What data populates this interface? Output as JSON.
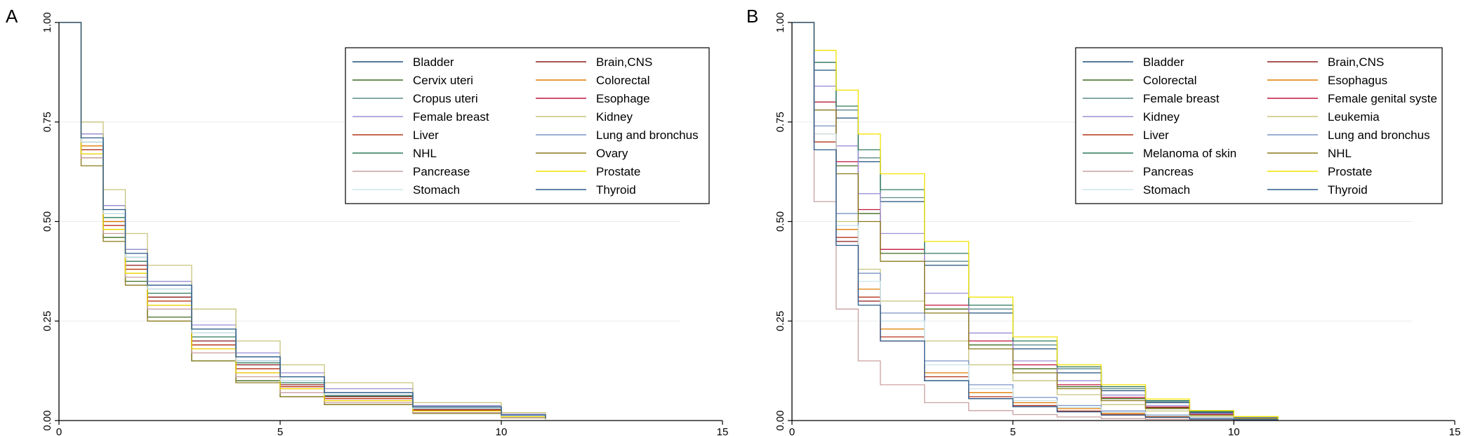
{
  "chart_data": [
    {
      "panel": "A",
      "type": "line",
      "xlim": [
        0,
        15
      ],
      "ylim": [
        0,
        1
      ],
      "xticks": [
        0,
        5,
        10,
        15
      ],
      "yticks": [
        0,
        0.25,
        0.5,
        0.75,
        1.0
      ],
      "xtick_labels": [
        "0",
        "5",
        "10",
        "15"
      ],
      "ytick_labels": [
        "0.00",
        "0.25",
        "0.50",
        "0.75",
        "1.00"
      ],
      "grid": true,
      "legend_position": "top-right",
      "series": [
        {
          "name": "Bladder",
          "color": "#1f4e79",
          "x": [
            0,
            0.5,
            1,
            1.5,
            2,
            3,
            4,
            5,
            6,
            8,
            10,
            11
          ],
          "y": [
            1.0,
            0.7,
            0.52,
            0.41,
            0.33,
            0.22,
            0.15,
            0.1,
            0.065,
            0.03,
            0.012,
            0.005
          ]
        },
        {
          "name": "Brain,CNS",
          "color": "#8b1a1a",
          "x": [
            0,
            0.5,
            1,
            1.5,
            2,
            3,
            4,
            5,
            6,
            8,
            10,
            11
          ],
          "y": [
            1.0,
            0.68,
            0.5,
            0.39,
            0.31,
            0.2,
            0.14,
            0.09,
            0.06,
            0.028,
            0.012,
            0.005
          ]
        },
        {
          "name": "Cervix uteri",
          "color": "#3f6b1f",
          "x": [
            0,
            0.5,
            1,
            1.5,
            2,
            3,
            4,
            5,
            6,
            8,
            10,
            11
          ],
          "y": [
            1.0,
            0.66,
            0.46,
            0.35,
            0.26,
            0.15,
            0.1,
            0.06,
            0.04,
            0.02,
            0.008,
            0.003
          ]
        },
        {
          "name": "Colorectal",
          "color": "#e07b00",
          "x": [
            0,
            0.5,
            1,
            1.5,
            2,
            3,
            4,
            5,
            6,
            8,
            10,
            11
          ],
          "y": [
            1.0,
            0.69,
            0.5,
            0.38,
            0.3,
            0.19,
            0.13,
            0.085,
            0.055,
            0.026,
            0.011,
            0.004
          ]
        },
        {
          "name": "Cropus uteri",
          "color": "#5b8a8a",
          "x": [
            0,
            0.5,
            1,
            1.5,
            2,
            3,
            4,
            5,
            6,
            8,
            10,
            11
          ],
          "y": [
            1.0,
            0.72,
            0.54,
            0.43,
            0.35,
            0.23,
            0.16,
            0.11,
            0.07,
            0.035,
            0.015,
            0.006
          ]
        },
        {
          "name": "Esophage",
          "color": "#c0143c",
          "x": [
            0,
            0.5,
            1,
            1.5,
            2,
            3,
            4,
            5,
            6,
            8,
            10,
            11
          ],
          "y": [
            1.0,
            0.67,
            0.48,
            0.37,
            0.29,
            0.18,
            0.12,
            0.08,
            0.05,
            0.024,
            0.01,
            0.004
          ]
        },
        {
          "name": "Female breast",
          "color": "#9c8fd6",
          "x": [
            0,
            0.5,
            1,
            1.5,
            2,
            3,
            4,
            5,
            6,
            8,
            10,
            11
          ],
          "y": [
            1.0,
            0.72,
            0.54,
            0.43,
            0.35,
            0.24,
            0.17,
            0.12,
            0.08,
            0.038,
            0.016,
            0.006
          ]
        },
        {
          "name": "Kidney",
          "color": "#c8c47a",
          "x": [
            0,
            0.5,
            1,
            1.5,
            2,
            3,
            4,
            5,
            6,
            8,
            10,
            11
          ],
          "y": [
            1.0,
            0.75,
            0.58,
            0.47,
            0.39,
            0.28,
            0.2,
            0.14,
            0.095,
            0.045,
            0.02,
            0.008
          ]
        },
        {
          "name": "Liver",
          "color": "#b5331a",
          "x": [
            0,
            0.5,
            1,
            1.5,
            2,
            3,
            4,
            5,
            6,
            8,
            10,
            11
          ],
          "y": [
            1.0,
            0.68,
            0.49,
            0.38,
            0.3,
            0.19,
            0.13,
            0.085,
            0.055,
            0.026,
            0.011,
            0.004
          ]
        },
        {
          "name": "Lung and bronchus",
          "color": "#7a94c4",
          "x": [
            0,
            0.5,
            1,
            1.5,
            2,
            3,
            4,
            5,
            6,
            8,
            10,
            11
          ],
          "y": [
            1.0,
            0.7,
            0.52,
            0.41,
            0.33,
            0.22,
            0.15,
            0.1,
            0.065,
            0.03,
            0.012,
            0.005
          ]
        },
        {
          "name": "NHL",
          "color": "#2d7a5a",
          "x": [
            0,
            0.5,
            1,
            1.5,
            2,
            3,
            4,
            5,
            6,
            8,
            10,
            11
          ],
          "y": [
            1.0,
            0.7,
            0.51,
            0.4,
            0.32,
            0.21,
            0.145,
            0.095,
            0.062,
            0.03,
            0.012,
            0.005
          ]
        },
        {
          "name": "Ovary",
          "color": "#8a7a1a",
          "x": [
            0,
            0.5,
            1,
            1.5,
            2,
            3,
            4,
            5,
            6,
            8,
            10,
            11
          ],
          "y": [
            1.0,
            0.64,
            0.45,
            0.34,
            0.25,
            0.15,
            0.095,
            0.06,
            0.04,
            0.018,
            0.007,
            0.003
          ]
        },
        {
          "name": "Pancrease",
          "color": "#c9a0a0",
          "x": [
            0,
            0.5,
            1,
            1.5,
            2,
            3,
            4,
            5,
            6,
            8,
            10,
            11
          ],
          "y": [
            1.0,
            0.66,
            0.47,
            0.36,
            0.28,
            0.17,
            0.11,
            0.07,
            0.045,
            0.02,
            0.008,
            0.003
          ]
        },
        {
          "name": "Prostate",
          "color": "#f2e200",
          "x": [
            0,
            0.5,
            1,
            1.5,
            2,
            3,
            4,
            5,
            6,
            8,
            10,
            11
          ],
          "y": [
            1.0,
            0.67,
            0.48,
            0.37,
            0.29,
            0.18,
            0.12,
            0.08,
            0.05,
            0.024,
            0.01,
            0.004
          ]
        },
        {
          "name": "Stomach",
          "color": "#cce6ea",
          "x": [
            0,
            0.5,
            1,
            1.5,
            2,
            3,
            4,
            5,
            6,
            8,
            10,
            11
          ],
          "y": [
            1.0,
            0.7,
            0.52,
            0.41,
            0.33,
            0.22,
            0.15,
            0.1,
            0.065,
            0.03,
            0.012,
            0.005
          ]
        },
        {
          "name": "Thyroid",
          "color": "#2a5a8c",
          "x": [
            0,
            0.5,
            1,
            1.5,
            2,
            3,
            4,
            5,
            6,
            8,
            10,
            11
          ],
          "y": [
            1.0,
            0.71,
            0.53,
            0.42,
            0.34,
            0.23,
            0.16,
            0.11,
            0.07,
            0.034,
            0.014,
            0.006
          ]
        }
      ]
    },
    {
      "panel": "B",
      "type": "line",
      "xlim": [
        0,
        15
      ],
      "ylim": [
        0,
        1
      ],
      "xticks": [
        0,
        5,
        10,
        15
      ],
      "yticks": [
        0,
        0.25,
        0.5,
        0.75,
        1.0
      ],
      "xtick_labels": [
        "0",
        "5",
        "10",
        "15"
      ],
      "ytick_labels": [
        "0.00",
        "0.25",
        "0.50",
        "0.75",
        "1.00"
      ],
      "grid": true,
      "legend_position": "top-right",
      "series": [
        {
          "name": "Bladder",
          "color": "#1f4e79",
          "x": [
            0,
            0.5,
            1,
            1.5,
            2,
            3,
            4,
            5,
            6,
            7,
            8,
            9,
            10,
            11
          ],
          "y": [
            1.0,
            0.88,
            0.76,
            0.65,
            0.55,
            0.39,
            0.27,
            0.18,
            0.12,
            0.075,
            0.045,
            0.02,
            0.008,
            0.003
          ]
        },
        {
          "name": "Brain,CNS",
          "color": "#8b1a1a",
          "x": [
            0,
            0.5,
            1,
            1.5,
            2,
            3,
            4,
            5,
            6,
            7,
            8,
            9,
            10,
            11
          ],
          "y": [
            1.0,
            0.7,
            0.45,
            0.3,
            0.2,
            0.1,
            0.055,
            0.035,
            0.022,
            0.014,
            0.008,
            0.004,
            0.002,
            0.001
          ]
        },
        {
          "name": "Colorectal",
          "color": "#3f6b1f",
          "x": [
            0,
            0.5,
            1,
            1.5,
            2,
            3,
            4,
            5,
            6,
            7,
            8,
            9,
            10,
            11
          ],
          "y": [
            1.0,
            0.8,
            0.64,
            0.52,
            0.42,
            0.28,
            0.19,
            0.13,
            0.085,
            0.055,
            0.032,
            0.015,
            0.006,
            0.002
          ]
        },
        {
          "name": "Esophagus",
          "color": "#e07b00",
          "x": [
            0,
            0.5,
            1,
            1.5,
            2,
            3,
            4,
            5,
            6,
            7,
            8,
            9,
            10,
            11
          ],
          "y": [
            1.0,
            0.72,
            0.48,
            0.33,
            0.23,
            0.12,
            0.07,
            0.045,
            0.03,
            0.018,
            0.01,
            0.005,
            0.002,
            0.001
          ]
        },
        {
          "name": "Female breast",
          "color": "#5b8a8a",
          "x": [
            0,
            0.5,
            1,
            1.5,
            2,
            3,
            4,
            5,
            6,
            7,
            8,
            9,
            10,
            11
          ],
          "y": [
            1.0,
            0.9,
            0.78,
            0.66,
            0.56,
            0.4,
            0.28,
            0.19,
            0.13,
            0.08,
            0.048,
            0.022,
            0.009,
            0.003
          ]
        },
        {
          "name": "Female genital syste",
          "color": "#c0143c",
          "x": [
            0,
            0.5,
            1,
            1.5,
            2,
            3,
            4,
            5,
            6,
            7,
            8,
            9,
            10,
            11
          ],
          "y": [
            1.0,
            0.8,
            0.65,
            0.53,
            0.43,
            0.29,
            0.2,
            0.14,
            0.09,
            0.058,
            0.034,
            0.016,
            0.006,
            0.002
          ]
        },
        {
          "name": "Kidney",
          "color": "#9c8fd6",
          "x": [
            0,
            0.5,
            1,
            1.5,
            2,
            3,
            4,
            5,
            6,
            7,
            8,
            9,
            10,
            11
          ],
          "y": [
            1.0,
            0.84,
            0.69,
            0.57,
            0.47,
            0.32,
            0.22,
            0.15,
            0.1,
            0.064,
            0.038,
            0.018,
            0.007,
            0.002
          ]
        },
        {
          "name": "Leukemia",
          "color": "#c8c47a",
          "x": [
            0,
            0.5,
            1,
            1.5,
            2,
            3,
            4,
            5,
            6,
            7,
            8,
            9,
            10,
            11
          ],
          "y": [
            1.0,
            0.7,
            0.5,
            0.38,
            0.3,
            0.2,
            0.14,
            0.1,
            0.065,
            0.04,
            0.024,
            0.011,
            0.004,
            0.001
          ]
        },
        {
          "name": "Liver",
          "color": "#b5331a",
          "x": [
            0,
            0.5,
            1,
            1.5,
            2,
            3,
            4,
            5,
            6,
            7,
            8,
            9,
            10,
            11
          ],
          "y": [
            1.0,
            0.7,
            0.46,
            0.31,
            0.21,
            0.11,
            0.06,
            0.038,
            0.024,
            0.015,
            0.009,
            0.004,
            0.002,
            0.001
          ]
        },
        {
          "name": "Lung and bronchus",
          "color": "#7a94c4",
          "x": [
            0,
            0.5,
            1,
            1.5,
            2,
            3,
            4,
            5,
            6,
            7,
            8,
            9,
            10,
            11
          ],
          "y": [
            1.0,
            0.74,
            0.52,
            0.37,
            0.27,
            0.15,
            0.09,
            0.058,
            0.038,
            0.024,
            0.014,
            0.007,
            0.003,
            0.001
          ]
        },
        {
          "name": "Melanoma of skin",
          "color": "#2d7a5a",
          "x": [
            0,
            0.5,
            1,
            1.5,
            2,
            3,
            4,
            5,
            6,
            7,
            8,
            9,
            10,
            11
          ],
          "y": [
            1.0,
            0.9,
            0.79,
            0.68,
            0.58,
            0.42,
            0.29,
            0.2,
            0.135,
            0.085,
            0.05,
            0.023,
            0.009,
            0.003
          ]
        },
        {
          "name": "NHL",
          "color": "#8a7a1a",
          "x": [
            0,
            0.5,
            1,
            1.5,
            2,
            3,
            4,
            5,
            6,
            7,
            8,
            9,
            10,
            11
          ],
          "y": [
            1.0,
            0.78,
            0.62,
            0.5,
            0.4,
            0.27,
            0.18,
            0.12,
            0.08,
            0.05,
            0.03,
            0.014,
            0.005,
            0.002
          ]
        },
        {
          "name": "Pancreas",
          "color": "#c9a0a0",
          "x": [
            0,
            0.5,
            1,
            1.5,
            2,
            3,
            4,
            5,
            6,
            7,
            8,
            9,
            10,
            11
          ],
          "y": [
            1.0,
            0.55,
            0.28,
            0.15,
            0.09,
            0.045,
            0.025,
            0.015,
            0.009,
            0.005,
            0.003,
            0.002,
            0.001,
            0.0
          ]
        },
        {
          "name": "Prostate",
          "color": "#f2e200",
          "x": [
            0,
            0.5,
            1,
            1.5,
            2,
            3,
            4,
            5,
            6,
            7,
            8,
            9,
            10,
            11
          ],
          "y": [
            1.0,
            0.93,
            0.83,
            0.72,
            0.62,
            0.45,
            0.31,
            0.21,
            0.14,
            0.09,
            0.054,
            0.025,
            0.01,
            0.003
          ]
        },
        {
          "name": "Stomach",
          "color": "#cce6ea",
          "x": [
            0,
            0.5,
            1,
            1.5,
            2,
            3,
            4,
            5,
            6,
            7,
            8,
            9,
            10,
            11
          ],
          "y": [
            1.0,
            0.72,
            0.49,
            0.35,
            0.25,
            0.14,
            0.08,
            0.05,
            0.033,
            0.021,
            0.012,
            0.006,
            0.002,
            0.001
          ]
        },
        {
          "name": "Thyroid",
          "color": "#2a5a8c",
          "x": [
            0,
            0.5,
            1,
            1.5,
            2,
            3,
            4,
            5,
            6,
            7,
            8,
            9,
            10,
            11
          ],
          "y": [
            1.0,
            0.68,
            0.44,
            0.29,
            0.2,
            0.1,
            0.055,
            0.035,
            0.022,
            0.014,
            0.008,
            0.004,
            0.002,
            0.001
          ]
        }
      ]
    }
  ]
}
